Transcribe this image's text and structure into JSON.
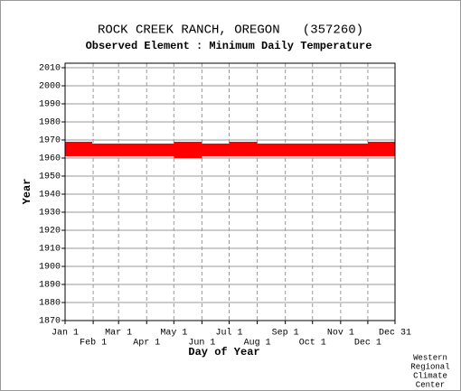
{
  "chart_data": {
    "type": "timeline",
    "title": "ROCK CREEK RANCH, OREGON   (357260)",
    "subtitle": "Observed Element : Minimum Daily Temperature",
    "x_label": "Day of Year",
    "y_label": "Year",
    "credit": [
      "Western",
      "Regional",
      "Climate",
      "Center"
    ],
    "color": "#ff0000",
    "xlim": [
      1,
      365
    ],
    "xticks": [
      {
        "value": 1,
        "label": "Jan 1"
      },
      {
        "value": 32,
        "label": "Feb 1"
      },
      {
        "value": 60,
        "label": "Mar 1"
      },
      {
        "value": 91,
        "label": "Apr 1"
      },
      {
        "value": 121,
        "label": "May 1"
      },
      {
        "value": 152,
        "label": "Jun 1"
      },
      {
        "value": 182,
        "label": "Jul 1"
      },
      {
        "value": 213,
        "label": "Aug 1"
      },
      {
        "value": 244,
        "label": "Sep 1"
      },
      {
        "value": 274,
        "label": "Oct 1"
      },
      {
        "value": 305,
        "label": "Nov 1"
      },
      {
        "value": 335,
        "label": "Dec 1"
      },
      {
        "value": 365,
        "label": "Dec 31"
      }
    ],
    "ylim": [
      1870,
      2012.5
    ],
    "yticks": [
      1870,
      1880,
      1890,
      1900,
      1910,
      1920,
      1930,
      1940,
      1950,
      1960,
      1970,
      1980,
      1990,
      2000,
      2010
    ],
    "grid": true,
    "segments": [
      {
        "year": 1968,
        "start": 1,
        "end": 31
      },
      {
        "year": 1968,
        "start": 121,
        "end": 152
      },
      {
        "year": 1968,
        "start": 182,
        "end": 213
      },
      {
        "year": 1968,
        "start": 335,
        "end": 365
      },
      {
        "year": 1967,
        "start": 1,
        "end": 365
      },
      {
        "year": 1966,
        "start": 1,
        "end": 365
      },
      {
        "year": 1965,
        "start": 1,
        "end": 365
      },
      {
        "year": 1964,
        "start": 1,
        "end": 365
      },
      {
        "year": 1963,
        "start": 1,
        "end": 365
      },
      {
        "year": 1962,
        "start": 1,
        "end": 365
      },
      {
        "year": 1961,
        "start": 1,
        "end": 365
      },
      {
        "year": 1960,
        "start": 121,
        "end": 152
      }
    ]
  }
}
